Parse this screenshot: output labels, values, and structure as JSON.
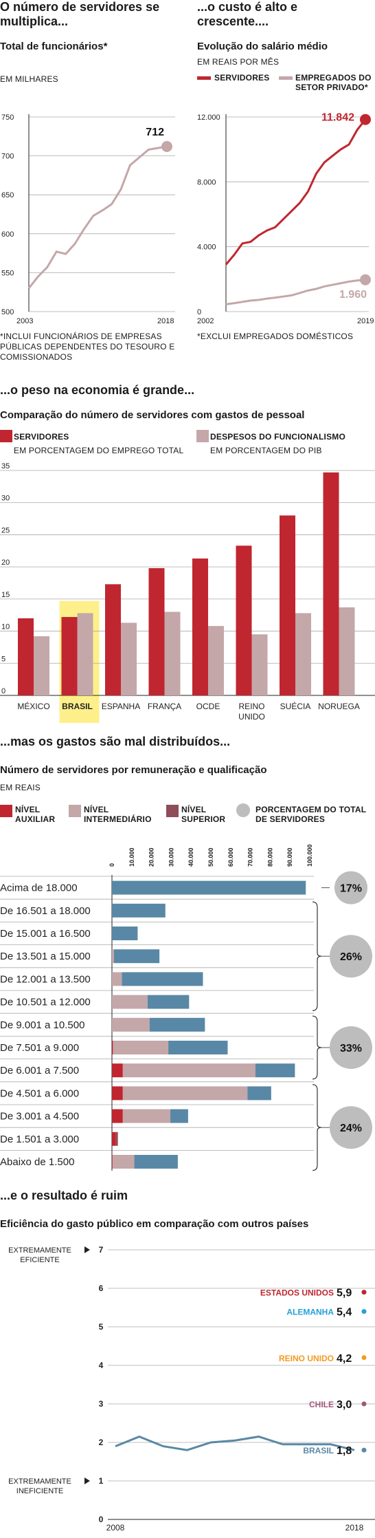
{
  "colors": {
    "servidores": "#c0262f",
    "privado": "#c4a7a9",
    "auxiliar": "#c0262f",
    "intermediario": "#c4a7a9",
    "superior": "#8e4d59",
    "teal": "#5988a6",
    "circle": "#bdbdbd",
    "highlight": "#fdf08a",
    "grid": "#aaaaaa",
    "us": "#c0262f",
    "de": "#27a0d8",
    "uk": "#f39a22",
    "cl": "#a3567a",
    "br": "#5988a6"
  },
  "panel1": {
    "headline": "O número de servidores se multiplica...",
    "subtitle": "Total de funcionários*",
    "unit": "EM MILHARES",
    "footnote": "*INCLUI FUNCIONÁRIOS DE EMPRESAS PÚBLICAS DEPENDENTES DO TESOURO E COMISSIONADOS",
    "end_label": "712"
  },
  "panel2": {
    "headline": "...o custo é alto e crescente....",
    "subtitle": "Evolução do salário médio",
    "unit": "EM REAIS POR MÊS",
    "legend_servidores": "SERVIDORES",
    "legend_privado": "EMPREGADOS DO SETOR PRIVADO*",
    "footnote": "*EXCLUI EMPREGADOS DOMÉSTICOS",
    "end_label_servidores": "11.842",
    "end_label_privado": "1.960"
  },
  "panel3": {
    "headline": "...o peso na economia é grande...",
    "subtitle": "Comparação do número de servidores com gastos de pessoal",
    "legend1": "SERVIDORES",
    "legend1_sub": "EM PORCENTAGEM DO EMPREGO TOTAL",
    "legend2": "DESPESOS DO FUNCIONALISMO",
    "legend2_sub": "EM PORCENTAGEM DO PIB"
  },
  "panel4": {
    "headline": "...mas os gastos são mal distribuídos...",
    "subtitle": "Número de servidores por remuneração e qualificação",
    "unit": "EM REAIS",
    "legend_auxiliar": "NÍVEL AUXILIAR",
    "legend_intermediario": "NÍVEL INTERMEDIÁRIO",
    "legend_superior": "NÍVEL SUPERIOR",
    "legend_pct": "PORCENTAGEM DO TOTAL DE SERVIDORES"
  },
  "panel5": {
    "headline": "...e o resultado é ruim",
    "subtitle": "Eficiência do gasto público em comparação com outros países",
    "extreme_top": "EXTREMAMENTE EFICIENTE",
    "extreme_bottom": "EXTREMAMENTE INEFICIENTE",
    "countries": [
      {
        "name": "ESTADOS UNIDOS",
        "value": "5,9",
        "color": "#c0262f"
      },
      {
        "name": "ALEMANHA",
        "value": "5,4",
        "color": "#27a0d8"
      },
      {
        "name": "REINO UNIDO",
        "value": "4,2",
        "color": "#f39a22"
      },
      {
        "name": "CHILE",
        "value": "3,0",
        "color": "#a3567a"
      },
      {
        "name": "BRASIL",
        "value": "1,8",
        "color": "#5988a6"
      }
    ]
  },
  "chart_data": [
    {
      "type": "line",
      "title": "Total de funcionários*",
      "ylabel": "EM MILHARES",
      "x": [
        2003,
        2004,
        2005,
        2006,
        2007,
        2008,
        2009,
        2010,
        2011,
        2012,
        2013,
        2014,
        2015,
        2016,
        2017,
        2018
      ],
      "x_tick_labels": [
        "2003",
        "2018"
      ],
      "y_ticks": [
        "500",
        "550",
        "600",
        "650",
        "700",
        "750"
      ],
      "ylim": [
        500,
        750
      ],
      "series": [
        {
          "values": [
            530,
            545,
            557,
            577,
            574,
            587,
            606,
            623,
            630,
            638,
            657,
            688,
            698,
            708,
            710,
            712
          ]
        }
      ]
    },
    {
      "type": "line",
      "title": "Evolução do salário médio",
      "ylabel": "EM REAIS POR MÊS",
      "x": [
        2002,
        2003,
        2004,
        2005,
        2006,
        2007,
        2008,
        2009,
        2010,
        2011,
        2012,
        2013,
        2014,
        2015,
        2016,
        2017,
        2018,
        2019
      ],
      "x_tick_labels": [
        "2002",
        "2019"
      ],
      "y_ticks": [
        "0",
        "4.000",
        "8.000",
        "12.000"
      ],
      "ylim": [
        0,
        12000
      ],
      "series": [
        {
          "name": "SERVIDORES",
          "values": [
            2900,
            3500,
            4200,
            4300,
            4700,
            5000,
            5200,
            5700,
            6200,
            6700,
            7400,
            8500,
            9200,
            9600,
            10000,
            10300,
            11200,
            11842
          ]
        },
        {
          "name": "EMPREGADOS DO SETOR PRIVADO*",
          "values": [
            450,
            520,
            600,
            680,
            720,
            800,
            860,
            930,
            1000,
            1150,
            1300,
            1400,
            1550,
            1650,
            1750,
            1850,
            1920,
            1960
          ]
        }
      ]
    },
    {
      "type": "bar",
      "title": "Comparação do número de servidores com gastos de pessoal",
      "categories": [
        "MÉXICO",
        "BRASIL",
        "ESPANHA",
        "FRANÇA",
        "OCDE",
        "REINO UNIDO",
        "SUÉCIA",
        "NORUEGA"
      ],
      "y_ticks": [
        "0",
        "5",
        "10",
        "15",
        "20",
        "25",
        "30",
        "35"
      ],
      "ylim": [
        0,
        35
      ],
      "series": [
        {
          "name": "SERVIDORES",
          "values": [
            12.0,
            12.2,
            17.3,
            19.8,
            21.3,
            23.3,
            28.0,
            34.7
          ]
        },
        {
          "name": "DESPESOS DO FUNCIONALISMO",
          "values": [
            9.2,
            12.8,
            11.3,
            13.0,
            10.8,
            9.5,
            12.8,
            13.7
          ]
        }
      ]
    },
    {
      "type": "bar",
      "title": "Número de servidores por remuneração e qualificação",
      "categories": [
        "Acima de 18.000",
        "De 16.501 a 18.000",
        "De 15.001 a 16.500",
        "De 13.501 a 15.000",
        "De 12.001 a 13.500",
        "De 10.501 a 12.000",
        "De 9.001 a 10.500",
        "De 7.501 a 9.000",
        "De 6.001 a 7.500",
        "De 4.501 a 6.000",
        "De 3.001 a 4.500",
        "De 1.501 a 3.000",
        "Abaixo de 1.500"
      ],
      "x_ticks": [
        "0",
        "10.000",
        "20.000",
        "30.000",
        "40.000",
        "50.000",
        "60.000",
        "70.000",
        "80.000",
        "90.000",
        "100.000"
      ],
      "xlim": [
        0,
        100000
      ],
      "series": [
        {
          "name": "NÍVEL AUXILIAR",
          "values": [
            0,
            0,
            0,
            0,
            0,
            0,
            0,
            500,
            5500,
            5500,
            5500,
            2000,
            300
          ]
        },
        {
          "name": "NÍVEL INTERMEDIÁRIO",
          "values": [
            0,
            0,
            0,
            1000,
            5000,
            18000,
            19000,
            28000,
            67000,
            63000,
            24000,
            0,
            11000
          ]
        },
        {
          "name": "NÍVEL SUPERIOR",
          "values": [
            0,
            0,
            0,
            0,
            0,
            0,
            0,
            0,
            0,
            0,
            0,
            1000,
            0
          ]
        },
        {
          "name": "Teal",
          "values": [
            98000,
            27000,
            13000,
            23000,
            41000,
            21000,
            28000,
            30000,
            20000,
            12000,
            9000,
            0,
            22000
          ]
        }
      ],
      "groups": [
        {
          "label": "17%",
          "rows": [
            0,
            0
          ]
        },
        {
          "label": "26%",
          "rows": [
            1,
            5
          ]
        },
        {
          "label": "33%",
          "rows": [
            6,
            8
          ]
        },
        {
          "label": "24%",
          "rows": [
            9,
            12
          ]
        }
      ]
    },
    {
      "type": "line",
      "title": "Eficiência do gasto público em comparação com outros países",
      "x": [
        2008,
        2009,
        2010,
        2011,
        2012,
        2013,
        2014,
        2015,
        2016,
        2017,
        2018
      ],
      "x_tick_labels": [
        "2008",
        "2018"
      ],
      "y_ticks": [
        "0",
        "1",
        "2",
        "3",
        "4",
        "5",
        "6",
        "7"
      ],
      "ylim": [
        0,
        7
      ],
      "series": [
        {
          "name": "BRASIL",
          "values": [
            1.9,
            2.15,
            1.9,
            1.8,
            2.0,
            2.05,
            2.15,
            1.95,
            1.95,
            1.95,
            1.8
          ]
        }
      ],
      "latest_values": [
        {
          "name": "ESTADOS UNIDOS",
          "value": 5.9
        },
        {
          "name": "ALEMANHA",
          "value": 5.4
        },
        {
          "name": "REINO UNIDO",
          "value": 4.2
        },
        {
          "name": "CHILE",
          "value": 3.0
        },
        {
          "name": "BRASIL",
          "value": 1.8
        }
      ]
    }
  ]
}
